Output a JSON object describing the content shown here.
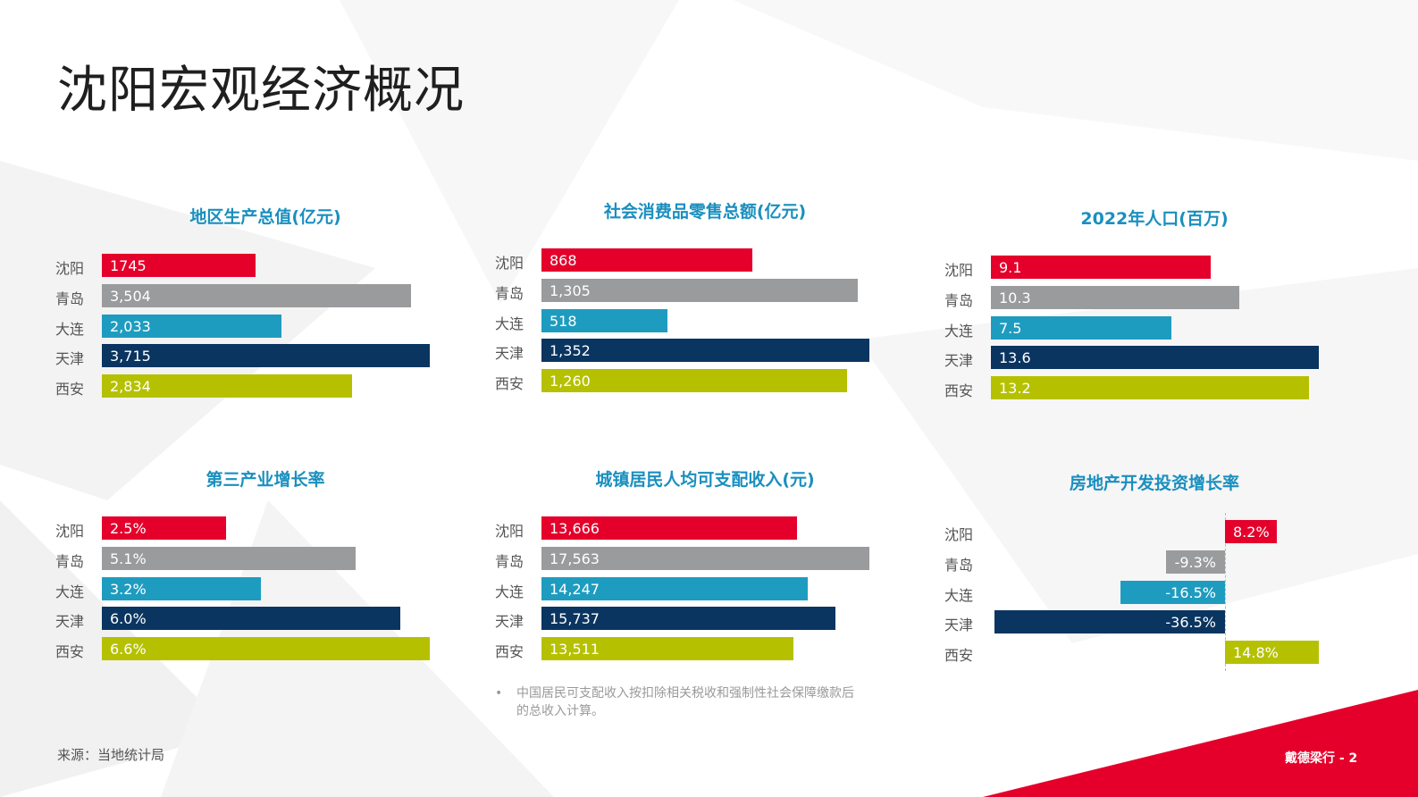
{
  "title": "沈阳宏观经济概况",
  "colors": {
    "沈阳": "#e4002b",
    "青岛": "#9a9b9d",
    "大连": "#1e9cc0",
    "天津": "#0a3560",
    "西安": "#b5c100",
    "accent_red": "#e4002b",
    "title_blue": "#1a8fbf"
  },
  "chart_data": [
    {
      "type": "bar",
      "orientation": "horizontal",
      "title": "地区生产总值(亿元)",
      "categories": [
        "沈阳",
        "青岛",
        "大连",
        "天津",
        "西安"
      ],
      "values": [
        1745,
        3504,
        2033,
        3715,
        2834
      ],
      "value_labels": [
        "1745",
        "3,504",
        "2,033",
        "3,715",
        "2,834"
      ],
      "xlim": [
        0,
        3715
      ]
    },
    {
      "type": "bar",
      "orientation": "horizontal",
      "title": "社会消费品零售总额(亿元)",
      "categories": [
        "沈阳",
        "青岛",
        "大连",
        "天津",
        "西安"
      ],
      "values": [
        868,
        1305,
        518,
        1352,
        1260
      ],
      "value_labels": [
        "868",
        "1,305",
        "518",
        "1,352",
        "1,260"
      ],
      "xlim": [
        0,
        1352
      ]
    },
    {
      "type": "bar",
      "orientation": "horizontal",
      "title": "2022年人口(百万)",
      "categories": [
        "沈阳",
        "青岛",
        "大连",
        "天津",
        "西安"
      ],
      "values": [
        9.1,
        10.3,
        7.5,
        13.6,
        13.2
      ],
      "value_labels": [
        "9.1",
        "10.3",
        "7.5",
        "13.6",
        "13.2"
      ],
      "xlim": [
        0,
        13.6
      ]
    },
    {
      "type": "bar",
      "orientation": "horizontal",
      "title": "第三产业增长率",
      "categories": [
        "沈阳",
        "青岛",
        "大连",
        "天津",
        "西安"
      ],
      "values": [
        2.5,
        5.1,
        3.2,
        6.0,
        6.6
      ],
      "value_labels": [
        "2.5%",
        "5.1%",
        "3.2%",
        "6.0%",
        "6.6%"
      ],
      "xlim": [
        0,
        6.6
      ]
    },
    {
      "type": "bar",
      "orientation": "horizontal",
      "title": "城镇居民人均可支配收入(元)",
      "categories": [
        "沈阳",
        "青岛",
        "大连",
        "天津",
        "西安"
      ],
      "values": [
        13666,
        17563,
        14247,
        15737,
        13511
      ],
      "value_labels": [
        "13,666",
        "17,563",
        "14,247",
        "15,737",
        "13,511"
      ],
      "xlim": [
        0,
        17563
      ]
    },
    {
      "type": "bar",
      "orientation": "horizontal",
      "title": "房地产开发投资增长率",
      "categories": [
        "沈阳",
        "青岛",
        "大连",
        "天津",
        "西安"
      ],
      "values": [
        8.2,
        -9.3,
        -16.5,
        -36.5,
        14.8
      ],
      "value_labels": [
        "8.2%",
        "-9.3%",
        "-16.5%",
        "-36.5%",
        "14.8%"
      ],
      "xlim": [
        -36.5,
        14.8
      ]
    }
  ],
  "footnote": {
    "bullet": "•",
    "text": "中国居民可支配收入按扣除相关税收和强制性社会保障缴款后的总收入计算。"
  },
  "source": "来源：当地统计局",
  "brand": "戴德梁行 - 2"
}
